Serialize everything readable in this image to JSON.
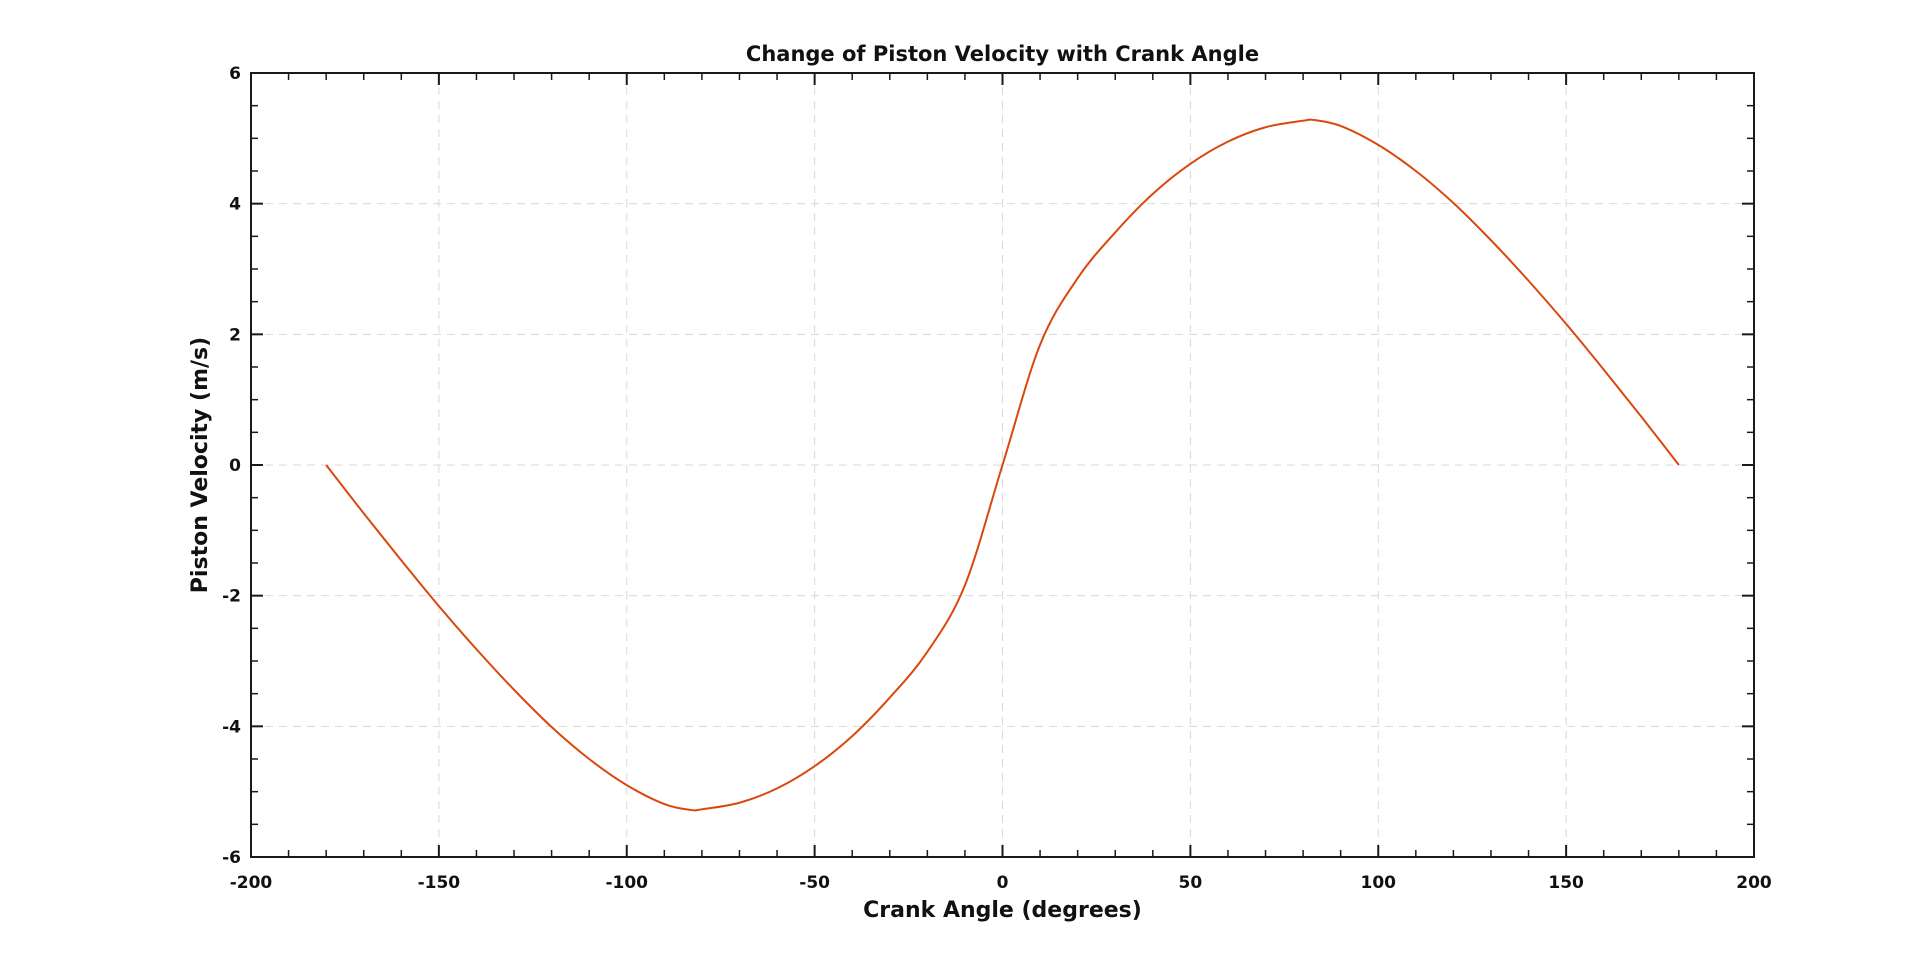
{
  "chart_data": {
    "type": "line",
    "title": "Change of Piston Velocity with Crank Angle",
    "xlabel": "Crank Angle (degrees)",
    "ylabel": "Piston Velocity (m/s)",
    "xlim": [
      -200,
      200
    ],
    "ylim": [
      -6,
      6
    ],
    "xticks": [
      -200,
      -150,
      -100,
      -50,
      0,
      50,
      100,
      150,
      200
    ],
    "xtick_labels": [
      "-200",
      "-150",
      "-100",
      "-50",
      "0",
      "50",
      "100",
      "150",
      "200"
    ],
    "yticks": [
      -6,
      -4,
      -2,
      0,
      2,
      4,
      6
    ],
    "ytick_labels": [
      "-6",
      "-4",
      "-2",
      "0",
      "2",
      "4",
      "6"
    ],
    "grid": true,
    "line_color": "#d9480f",
    "series": [
      {
        "x": [
          -180,
          -170,
          -160,
          -150,
          -140,
          -130,
          -120,
          -110,
          -100,
          -90,
          -83,
          -80,
          -70,
          -60,
          -50,
          -40,
          -30,
          -20,
          -10,
          0,
          10,
          20,
          30,
          40,
          50,
          60,
          70,
          80,
          83,
          90,
          100,
          110,
          120,
          130,
          140,
          150,
          160,
          170,
          180
        ],
        "values": [
          0,
          -0.74,
          -1.46,
          -2.16,
          -2.82,
          -3.44,
          -4.01,
          -4.5,
          -4.9,
          -5.19,
          -5.28,
          -5.27,
          -5.17,
          -4.95,
          -4.61,
          -4.15,
          -3.56,
          -2.86,
          -1.84,
          0,
          1.84,
          2.86,
          3.56,
          4.15,
          4.61,
          4.95,
          5.17,
          5.27,
          5.28,
          5.19,
          4.9,
          4.5,
          4.01,
          3.44,
          2.82,
          2.16,
          1.46,
          0.74,
          0
        ]
      }
    ]
  }
}
